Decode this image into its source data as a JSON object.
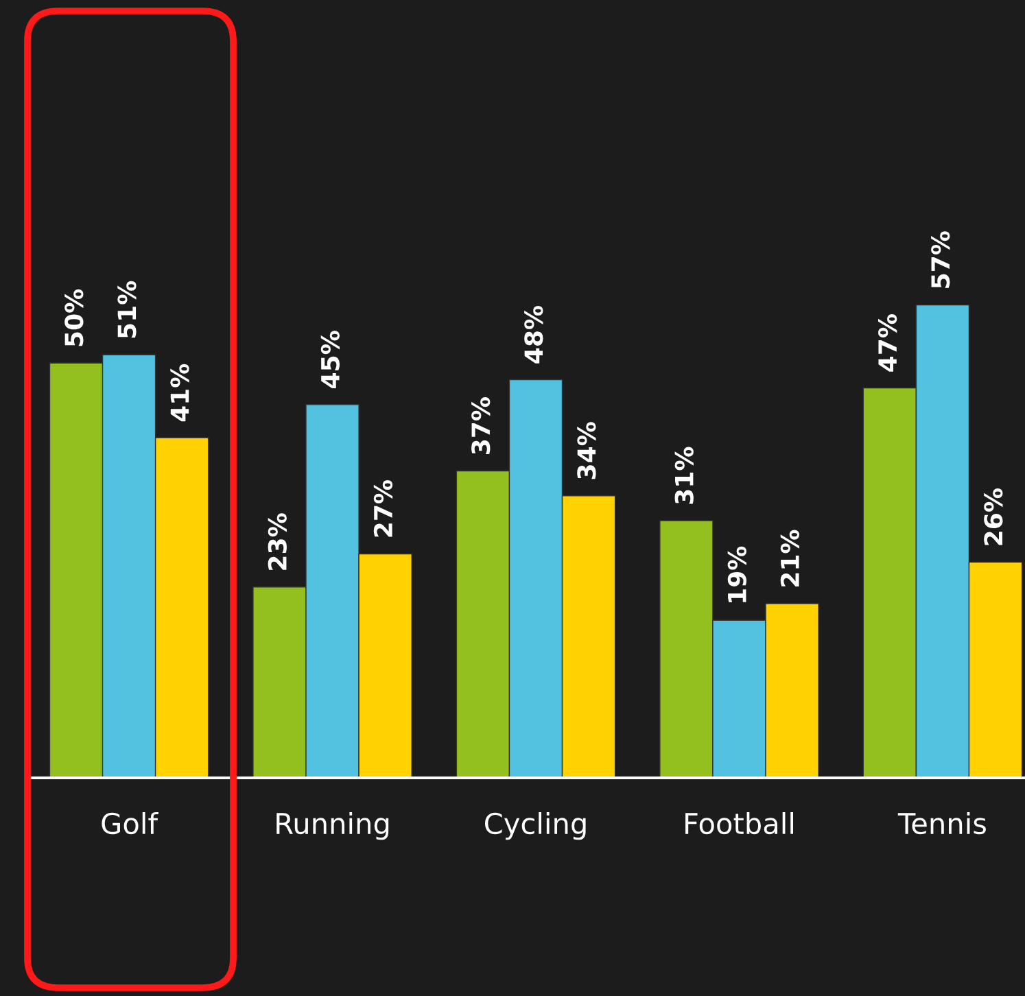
{
  "chart_data": {
    "type": "bar",
    "categories": [
      "Golf",
      "Running",
      "Cycling",
      "Football",
      "Tennis"
    ],
    "series": [
      {
        "color": "#93c01f",
        "values": [
          50,
          23,
          37,
          31,
          47
        ],
        "value_labels": [
          "50%",
          "23%",
          "37%",
          "31%",
          "47%"
        ]
      },
      {
        "color": "#52c2e0",
        "values": [
          51,
          45,
          48,
          19,
          57
        ],
        "value_labels": [
          "51%",
          "45%",
          "48%",
          "19%",
          "57%"
        ]
      },
      {
        "color": "#ffd200",
        "values": [
          41,
          27,
          34,
          21,
          26
        ],
        "value_labels": [
          "41%",
          "27%",
          "34%",
          "21%",
          "26%"
        ]
      }
    ],
    "grid": false,
    "legend": false
  }
}
